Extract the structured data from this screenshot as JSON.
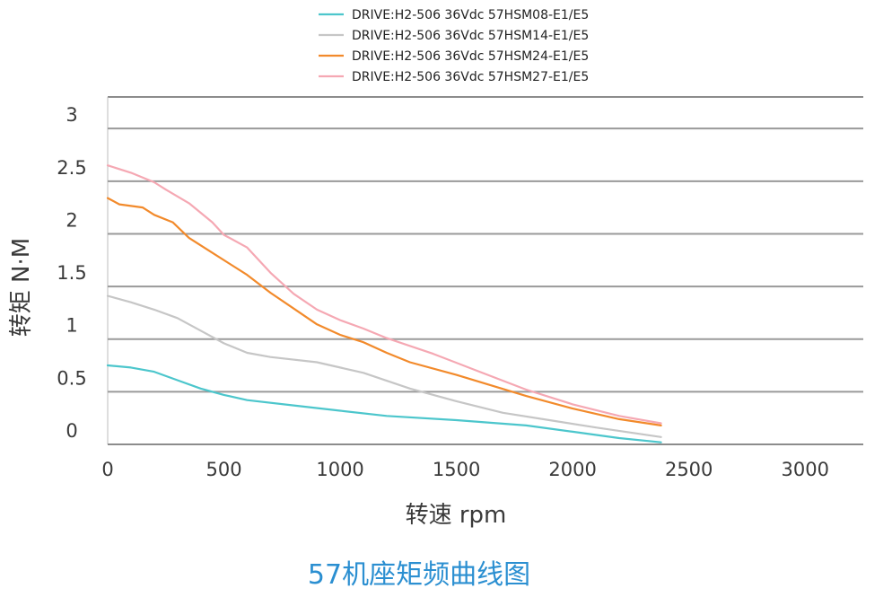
{
  "chart_data": {
    "type": "line",
    "title": "57机座矩频曲线图",
    "xlabel": "转速 rpm",
    "ylabel": "转矩 N·M",
    "xlim": [
      0,
      3250
    ],
    "ylim": [
      0,
      3.0
    ],
    "x_ticks": [
      "0",
      "500",
      "1000",
      "1500",
      "2000",
      "2500",
      "3000"
    ],
    "y_ticks": [
      "0",
      "0.5",
      "1",
      "1.5",
      "2",
      "2.5",
      "3"
    ],
    "grid": "horizontal",
    "legend_position": "top-center",
    "series": [
      {
        "name": "DRIVE:H2-506 36Vdc 57HSM08-E1/E5",
        "color": "#4cc6cc",
        "points": [
          [
            0,
            0.75
          ],
          [
            100,
            0.73
          ],
          [
            200,
            0.69
          ],
          [
            300,
            0.61
          ],
          [
            400,
            0.53
          ],
          [
            500,
            0.47
          ],
          [
            600,
            0.42
          ],
          [
            800,
            0.37
          ],
          [
            1000,
            0.32
          ],
          [
            1200,
            0.27
          ],
          [
            1500,
            0.23
          ],
          [
            1800,
            0.18
          ],
          [
            2000,
            0.12
          ],
          [
            2200,
            0.06
          ],
          [
            2380,
            0.02
          ]
        ]
      },
      {
        "name": "DRIVE:H2-506 36Vdc 57HSM14-E1/E5",
        "color": "#c6c6c6",
        "points": [
          [
            0,
            1.41
          ],
          [
            100,
            1.35
          ],
          [
            200,
            1.28
          ],
          [
            300,
            1.2
          ],
          [
            400,
            1.08
          ],
          [
            500,
            0.96
          ],
          [
            600,
            0.87
          ],
          [
            700,
            0.83
          ],
          [
            900,
            0.78
          ],
          [
            1100,
            0.68
          ],
          [
            1300,
            0.53
          ],
          [
            1500,
            0.41
          ],
          [
            1700,
            0.3
          ],
          [
            1900,
            0.23
          ],
          [
            2100,
            0.16
          ],
          [
            2380,
            0.07
          ]
        ]
      },
      {
        "name": "DRIVE:H2-506 36Vdc 57HSM24-E1/E5",
        "color": "#f28a2b",
        "points": [
          [
            0,
            2.34
          ],
          [
            50,
            2.28
          ],
          [
            150,
            2.25
          ],
          [
            200,
            2.18
          ],
          [
            280,
            2.11
          ],
          [
            350,
            1.96
          ],
          [
            450,
            1.82
          ],
          [
            550,
            1.68
          ],
          [
            600,
            1.61
          ],
          [
            700,
            1.44
          ],
          [
            800,
            1.29
          ],
          [
            900,
            1.14
          ],
          [
            1000,
            1.04
          ],
          [
            1100,
            0.97
          ],
          [
            1200,
            0.87
          ],
          [
            1300,
            0.78
          ],
          [
            1500,
            0.66
          ],
          [
            1800,
            0.46
          ],
          [
            2000,
            0.34
          ],
          [
            2200,
            0.24
          ],
          [
            2380,
            0.18
          ]
        ]
      },
      {
        "name": "DRIVE:H2-506 36Vdc 57HSM27-E1/E5",
        "color": "#f5a8b3",
        "points": [
          [
            0,
            2.65
          ],
          [
            100,
            2.58
          ],
          [
            200,
            2.49
          ],
          [
            250,
            2.42
          ],
          [
            350,
            2.29
          ],
          [
            450,
            2.11
          ],
          [
            500,
            1.99
          ],
          [
            600,
            1.87
          ],
          [
            700,
            1.63
          ],
          [
            800,
            1.43
          ],
          [
            900,
            1.28
          ],
          [
            1000,
            1.18
          ],
          [
            1100,
            1.1
          ],
          [
            1200,
            1.01
          ],
          [
            1400,
            0.86
          ],
          [
            1600,
            0.69
          ],
          [
            1800,
            0.52
          ],
          [
            2000,
            0.38
          ],
          [
            2200,
            0.27
          ],
          [
            2380,
            0.2
          ]
        ]
      }
    ]
  }
}
